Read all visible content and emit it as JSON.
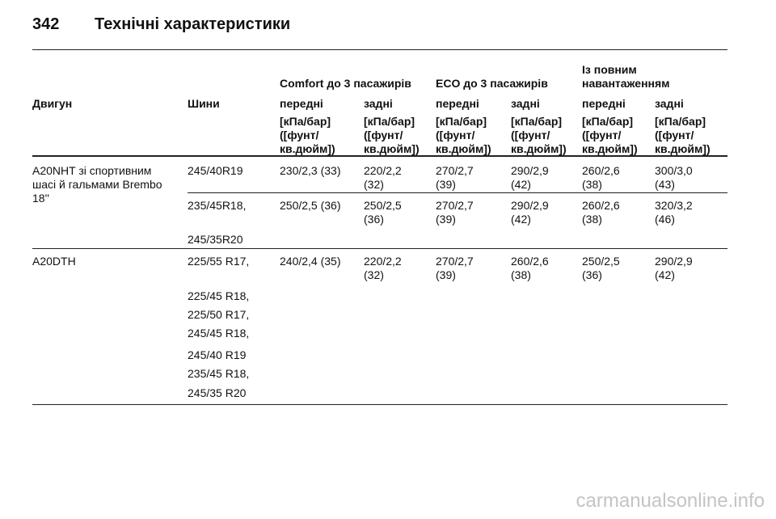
{
  "header": {
    "page_number": "342",
    "title": "Технічні характеристики"
  },
  "table": {
    "group_headers": [
      "Comfort до 3 пасажирів",
      "ECO до 3 пасажирів",
      "Із повним\nнавантаженням"
    ],
    "columns": [
      "Двигун",
      "Шини",
      "передні",
      "задні",
      "передні",
      "задні",
      "передні",
      "задні"
    ],
    "units": [
      "[кПа/бар]\n([фунт/\nкв.дюйм])",
      "[кПа/бар]\n([фунт/\nкв.дюйм])",
      "[кПа/бар]\n([фунт/\nкв.дюйм])",
      "[кПа/бар]\n([фунт/\nкв.дюйм])",
      "[кПа/бар]\n([фунт/\nкв.дюйм])",
      "[кПа/бар]\n([фунт/\nкв.дюйм])"
    ],
    "rows": [
      {
        "engine": "A20NHT зі спортивним\nшасі й гальмами Brembo\n18''",
        "sub_rows": [
          {
            "tyres": [
              "245/40R19"
            ],
            "values": [
              "230/2,3 (33)",
              "220/2,2\n(32)",
              "270/2,7\n(39)",
              "290/2,9\n(42)",
              "260/2,6\n(38)",
              "300/3,0\n(43)"
            ]
          },
          {
            "tyres": [
              "235/45R18,",
              "245/35R20"
            ],
            "values": [
              "250/2,5 (36)",
              "250/2,5\n(36)",
              "270/2,7\n(39)",
              "290/2,9\n(42)",
              "260/2,6\n(38)",
              "320/3,2\n(46)"
            ]
          }
        ]
      },
      {
        "engine": "A20DTH",
        "sub_rows": [
          {
            "tyres": [
              "225/55 R17,",
              "225/45 R18,",
              "225/50 R17,",
              "245/45 R18,",
              "245/40 R19",
              "235/45 R18,",
              "245/35 R20"
            ],
            "values": [
              "240/2,4 (35)",
              "220/2,2\n(32)",
              "270/2,7\n(39)",
              "260/2,6\n(38)",
              "250/2,5\n(36)",
              "290/2,9\n(42)"
            ]
          }
        ]
      }
    ]
  },
  "watermark": "carmanualsonline.info"
}
